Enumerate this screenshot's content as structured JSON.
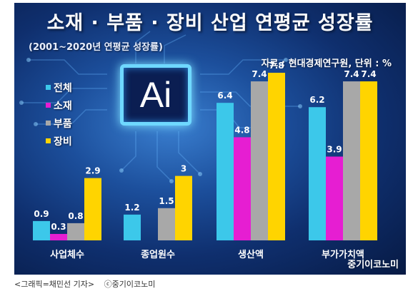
{
  "header": {
    "title": "소재 · 부품 · 장비 산업 연평균 성장률",
    "subtitle": "(2001~2020년 연평균 성장률)",
    "source": "자료 : 현대경제연구원, 단위 : %",
    "chip_text": "Ai",
    "watermark": "중기이코노미"
  },
  "caption": {
    "credit": "<그래픽=채민선 기자>",
    "copyright": "ⓒ중기이코노미"
  },
  "chart_data": {
    "type": "bar",
    "title": "소재 · 부품 · 장비 산업 연평균 성장률",
    "subtitle": "(2001~2020년 연평균 성장률)",
    "unit": "%",
    "categories": [
      "사업체수",
      "종업원수",
      "생산액",
      "부가가치액"
    ],
    "series": [
      {
        "name": "전체",
        "color": "#3cc8ea",
        "values": [
          0.9,
          1.2,
          6.4,
          6.2
        ]
      },
      {
        "name": "소재",
        "color": "#e61ed2",
        "values": [
          0.3,
          null,
          4.8,
          3.9
        ]
      },
      {
        "name": "부품",
        "color": "#a8a8a8",
        "values": [
          0.8,
          1.5,
          7.4,
          7.4
        ]
      },
      {
        "name": "장비",
        "color": "#ffd400",
        "values": [
          2.9,
          3,
          7.8,
          7.4
        ]
      }
    ],
    "ylim": [
      0,
      8
    ],
    "grid": false,
    "legend_position": "left"
  }
}
